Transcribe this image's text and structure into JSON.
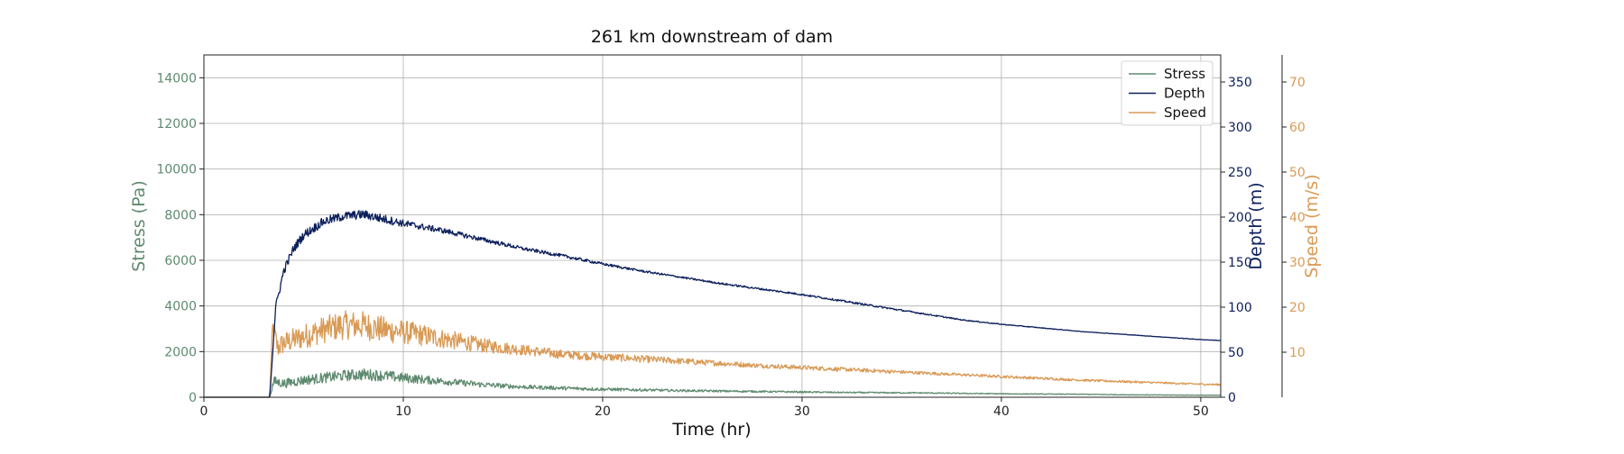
{
  "chart_data": {
    "type": "line",
    "title": "261 km downstream of dam",
    "xlabel": "Time (hr)",
    "xlim": [
      0,
      51
    ],
    "xticks": [
      0,
      10,
      20,
      30,
      40,
      50
    ],
    "grid": true,
    "legend": {
      "placement": "top-right",
      "entries": [
        "Stress",
        "Depth",
        "Speed"
      ]
    },
    "axes": [
      {
        "key": "stress",
        "label": "Stress (Pa)",
        "side": "left",
        "ylim": [
          0,
          15000
        ],
        "ticks": [
          0,
          2000,
          4000,
          6000,
          8000,
          10000,
          12000,
          14000
        ],
        "color": "#5e8a6f"
      },
      {
        "key": "depth",
        "label": "Depth (m)",
        "side": "right",
        "ylim": [
          0,
          380
        ],
        "ticks": [
          0,
          50,
          100,
          150,
          200,
          250,
          300,
          350
        ],
        "color": "#0c1f5c"
      },
      {
        "key": "speed",
        "label": "Speed (m/s)",
        "side": "right-outer",
        "ylim": [
          0,
          76
        ],
        "ticks": [
          10,
          20,
          30,
          40,
          50,
          60,
          70
        ],
        "color": "#d99a55"
      }
    ],
    "series": [
      {
        "name": "Stress",
        "axis": "stress",
        "color": "#5e8a6f",
        "x": [
          0,
          3.3,
          3.5,
          4,
          5,
          6,
          7,
          8,
          9,
          10,
          12,
          14,
          16,
          18,
          20,
          22,
          24,
          26,
          28,
          30,
          32,
          34,
          36,
          38,
          40,
          42,
          44,
          46,
          48,
          50,
          51
        ],
        "y": [
          0,
          0,
          700,
          600,
          750,
          850,
          950,
          1000,
          950,
          850,
          700,
          550,
          450,
          400,
          350,
          320,
          290,
          270,
          250,
          230,
          210,
          200,
          190,
          170,
          150,
          140,
          130,
          110,
          100,
          90,
          85
        ],
        "noise": [
          0,
          0,
          220,
          200,
          220,
          230,
          240,
          260,
          240,
          220,
          160,
          120,
          90,
          80,
          70,
          60,
          50,
          45,
          40,
          35,
          30,
          28,
          25,
          22,
          20,
          18,
          16,
          14,
          12,
          12,
          12
        ]
      },
      {
        "name": "Depth",
        "axis": "depth",
        "color": "#0c1f5c",
        "x": [
          0,
          3.3,
          3.6,
          4,
          4.5,
          5,
          6,
          7,
          8,
          9,
          10,
          12,
          14,
          16,
          18,
          20,
          22,
          24,
          26,
          28,
          30,
          32,
          34,
          36,
          38,
          40,
          42,
          44,
          46,
          48,
          50,
          51
        ],
        "y": [
          0,
          0,
          100,
          140,
          165,
          180,
          195,
          201,
          203,
          198,
          193,
          185,
          175,
          165,
          157,
          148,
          140,
          133,
          126,
          120,
          114,
          107,
          100,
          93,
          86,
          81,
          77,
          73,
          70,
          67,
          64,
          63
        ],
        "noise": [
          0,
          0,
          4,
          5,
          5,
          5,
          5,
          5,
          5,
          5,
          4,
          3,
          2.5,
          2,
          1.8,
          1.5,
          1.2,
          1,
          1,
          1,
          1,
          1,
          1,
          0.8,
          0.6,
          0.5,
          0.4,
          0.3,
          0.3,
          0.3,
          0.3,
          0.3
        ]
      },
      {
        "name": "Speed",
        "axis": "speed",
        "color": "#d99a55",
        "x": [
          0,
          3.3,
          3.45,
          3.7,
          4,
          5,
          6,
          7,
          8,
          9,
          10,
          12,
          14,
          16,
          18,
          20,
          22,
          24,
          26,
          28,
          30,
          32,
          34,
          36,
          38,
          40,
          42,
          44,
          46,
          48,
          50,
          51
        ],
        "y": [
          0,
          0,
          16,
          11,
          12,
          13.5,
          15,
          16,
          16,
          15,
          14.5,
          13,
          11.5,
          10.5,
          9.5,
          9,
          8.5,
          8,
          7.5,
          7,
          6.6,
          6.2,
          5.8,
          5.4,
          5,
          4.6,
          4.2,
          3.8,
          3.5,
          3.2,
          2.9,
          2.8
        ],
        "noise": [
          0,
          0,
          2,
          2.5,
          2.5,
          2.8,
          3,
          3.2,
          3.2,
          3,
          2.7,
          2.2,
          1.6,
          1.2,
          1,
          0.9,
          0.8,
          0.7,
          0.6,
          0.5,
          0.5,
          0.45,
          0.4,
          0.35,
          0.3,
          0.3,
          0.3,
          0.25,
          0.25,
          0.2,
          0.2,
          0.2
        ]
      }
    ]
  }
}
